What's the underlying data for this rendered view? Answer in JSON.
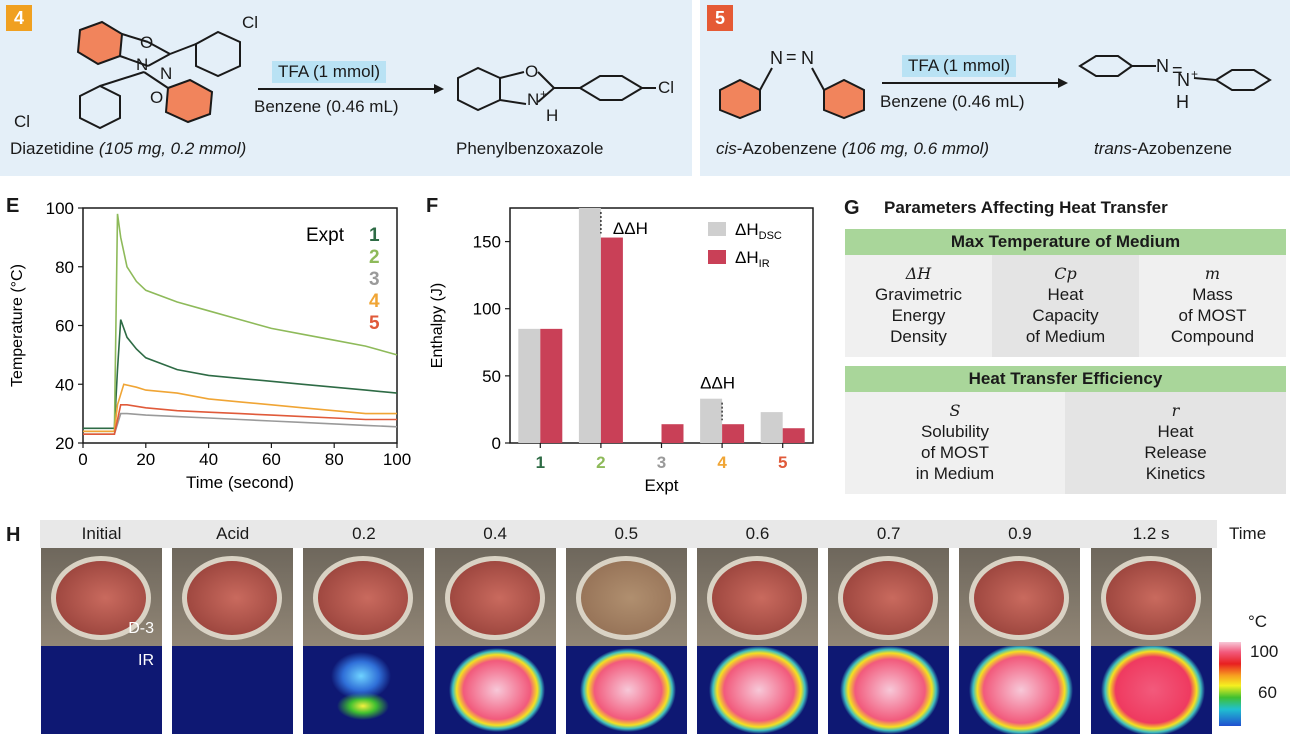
{
  "panel4": {
    "badge": "4",
    "reagent": "TFA (1 mmol)",
    "solvent": "Benzene (0.46 mL)",
    "reactant_name": "Diazetidine",
    "reactant_amount": "(105 mg, 0.2 mmol)",
    "product_name": "Phenylbenzoxazole",
    "atom_cl1": "Cl",
    "atom_cl2": "Cl",
    "atom_cl3": "Cl",
    "atom_o1": "O",
    "atom_o2": "O",
    "atom_o3": "O",
    "atom_n1": "N",
    "atom_n2": "N",
    "atom_n3": "N",
    "atom_h": "H",
    "charge": "+"
  },
  "panel5": {
    "badge": "5",
    "reagent": "TFA (1 mmol)",
    "solvent": "Benzene (0.46 mL)",
    "reactant_prefix": "cis",
    "reactant_name": "-Azobenzene",
    "reactant_amount": "(106 mg, 0.6 mmol)",
    "product_prefix": "trans",
    "product_name": "-Azobenzene",
    "atom_n1": "N",
    "atom_n2": "N",
    "atom_n3": "N",
    "atom_n4": "N",
    "atom_h": "H",
    "charge": "+",
    "double_bond": "="
  },
  "panelE": {
    "label": "E",
    "legend_title": "Expt",
    "chart_data": {
      "type": "line",
      "xlabel": "Time (second)",
      "ylabel": "Temperature (°C)",
      "xlim": [
        0,
        100
      ],
      "ylim": [
        20,
        100
      ],
      "xticks": [
        "0",
        "20",
        "40",
        "60",
        "80",
        "100"
      ],
      "yticks": [
        "20",
        "40",
        "60",
        "80",
        "100"
      ],
      "series": [
        {
          "name": "1",
          "color": "#2e6b45",
          "x": [
            0,
            9,
            10,
            11,
            12,
            14,
            17,
            20,
            30,
            40,
            50,
            60,
            70,
            80,
            90,
            100
          ],
          "y": [
            25,
            25,
            25,
            45,
            62,
            56,
            52,
            49,
            45,
            43,
            42,
            41,
            40,
            39,
            38,
            37
          ]
        },
        {
          "name": "2",
          "color": "#8eba5a",
          "x": [
            0,
            9,
            10,
            11,
            12,
            14,
            17,
            20,
            30,
            40,
            50,
            60,
            70,
            80,
            90,
            100
          ],
          "y": [
            24,
            24,
            24,
            98,
            90,
            80,
            75,
            72,
            68,
            65,
            62,
            59,
            57,
            55,
            53,
            50
          ]
        },
        {
          "name": "3",
          "color": "#9a9a9a",
          "x": [
            0,
            9,
            10,
            12,
            14,
            20,
            30,
            40,
            50,
            60,
            70,
            80,
            90,
            100
          ],
          "y": [
            23,
            23,
            23,
            30,
            30,
            29.5,
            29,
            28.5,
            28,
            27.5,
            27,
            26.5,
            26,
            25.5
          ]
        },
        {
          "name": "4",
          "color": "#f0a535",
          "x": [
            0,
            9,
            10,
            11,
            13,
            17,
            20,
            30,
            40,
            50,
            60,
            70,
            80,
            90,
            100
          ],
          "y": [
            24,
            24,
            24,
            33,
            40,
            39,
            38,
            37,
            35,
            34,
            33,
            32,
            31,
            30,
            30
          ]
        },
        {
          "name": "5",
          "color": "#e05a3a",
          "x": [
            0,
            9,
            10,
            12,
            14,
            20,
            30,
            40,
            50,
            60,
            70,
            80,
            90,
            100
          ],
          "y": [
            23,
            23,
            23,
            33,
            33,
            32,
            31,
            30.5,
            30,
            29.5,
            29,
            28.5,
            28,
            28
          ]
        }
      ]
    }
  },
  "panelF": {
    "label": "F",
    "annotation_top": "ΔΔH",
    "annotation_bottom": "ΔΔH",
    "legend_dsc": "ΔH",
    "legend_dsc_sub": "DSC",
    "legend_ir": "ΔH",
    "legend_ir_sub": "IR",
    "chart_data": {
      "type": "bar",
      "xlabel": "Expt",
      "ylabel": "Enthalpy (J)",
      "ylim": [
        0,
        175
      ],
      "yticks": [
        "0",
        "50",
        "100",
        "150"
      ],
      "categories": [
        "1",
        "2",
        "3",
        "4",
        "5"
      ],
      "category_colors": [
        "#2e6b45",
        "#8eba5a",
        "#9a9a9a",
        "#f0a535",
        "#e05a3a"
      ],
      "series": [
        {
          "name": "ΔH DSC",
          "color": "#cfcfcf",
          "values": [
            85,
            175,
            0,
            33,
            23
          ]
        },
        {
          "name": "ΔH IR",
          "color": "#c94057",
          "values": [
            85,
            153,
            14,
            14,
            11
          ]
        }
      ]
    }
  },
  "panelG": {
    "label": "G",
    "title": "Parameters Affecting Heat Transfer",
    "section1_header": "Max Temperature of Medium",
    "cell1_sym": "ΔH",
    "cell1_l1": "Gravimetric",
    "cell1_l2": "Energy",
    "cell1_l3": "Density",
    "cell2_sym": "Cp",
    "cell2_l1": "Heat",
    "cell2_l2": "Capacity",
    "cell2_l3": "of Medium",
    "cell3_sym": "m",
    "cell3_l1": "Mass",
    "cell3_l2": "of MOST",
    "cell3_l3": "Compound",
    "section2_header": "Heat Transfer Efficiency",
    "cell4_sym": "S",
    "cell4_l1": "Solubility",
    "cell4_l2": "of MOST",
    "cell4_l3": "in Medium",
    "cell5_sym": "r",
    "cell5_l1": "Heat",
    "cell5_l2": "Release",
    "cell5_l3": "Kinetics"
  },
  "panelH": {
    "label": "H",
    "time_label": "Time",
    "frames": [
      "Initial",
      "Acid",
      "0.2",
      "0.4",
      "0.5",
      "0.6",
      "0.7",
      "0.9",
      "1.2 s"
    ],
    "photo_label": "D-3",
    "ir_label": "IR",
    "scale_unit": "°C",
    "scale_max": "100",
    "scale_mid": "60"
  }
}
